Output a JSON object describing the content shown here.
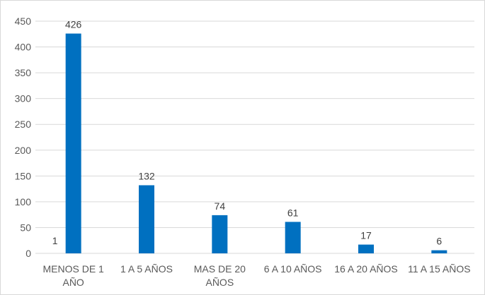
{
  "chart_data": {
    "type": "bar",
    "categories": [
      [
        "MENOS DE 1",
        "AÑO"
      ],
      [
        "1 A 5 AÑOS"
      ],
      [
        "MAS DE 20",
        "AÑOS"
      ],
      [
        "6 A 10 AÑOS"
      ],
      [
        "16 A 20 AÑOS"
      ],
      [
        "11 A 15 AÑOS"
      ]
    ],
    "values": [
      426,
      132,
      74,
      61,
      17,
      6
    ],
    "extra_annotations": [
      {
        "category_index": 0,
        "text": "1"
      }
    ],
    "ylim": [
      0,
      450
    ],
    "yticks": [
      0,
      50,
      100,
      150,
      200,
      250,
      300,
      350,
      400,
      450
    ],
    "grid": true,
    "bar_color": "#0070c0",
    "grid_color": "#d9d9d9",
    "title": "",
    "xlabel": "",
    "ylabel": ""
  }
}
